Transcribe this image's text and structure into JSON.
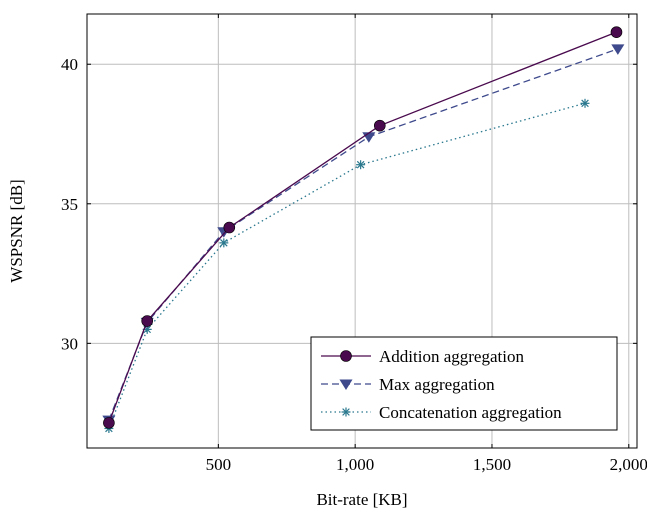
{
  "chart_data": {
    "type": "line",
    "title": "",
    "xlabel": "Bit-rate [KB]",
    "ylabel": "WSPSNR [dB]",
    "xlim": [
      20,
      2030
    ],
    "ylim": [
      26.25,
      41.8
    ],
    "x_ticks": [
      500,
      1000,
      1500,
      2000
    ],
    "x_tick_labels": [
      "500",
      "1,000",
      "1,500",
      "2,000"
    ],
    "y_ticks": [
      30,
      35,
      40
    ],
    "y_tick_labels": [
      "30",
      "35",
      "40"
    ],
    "grid": true,
    "legend_position": "bottom-right",
    "series": [
      {
        "name": "Addition aggregation",
        "color": "#4a0a4e",
        "line_style": "solid",
        "marker": "circle",
        "x": [
          100,
          240,
          540,
          1090,
          1955
        ],
        "y": [
          27.15,
          30.8,
          34.15,
          37.8,
          41.15
        ]
      },
      {
        "name": "Max aggregation",
        "color": "#3e4a8c",
        "line_style": "dashed",
        "marker": "triangle-down",
        "x": [
          100,
          240,
          520,
          1050,
          1960
        ],
        "y": [
          27.25,
          30.75,
          34.0,
          37.4,
          40.55
        ]
      },
      {
        "name": "Concatenation aggregation",
        "color": "#2a788e",
        "line_style": "dotted",
        "marker": "star",
        "x": [
          100,
          240,
          520,
          1020,
          1840
        ],
        "y": [
          26.95,
          30.5,
          33.6,
          36.4,
          38.6
        ]
      }
    ]
  }
}
